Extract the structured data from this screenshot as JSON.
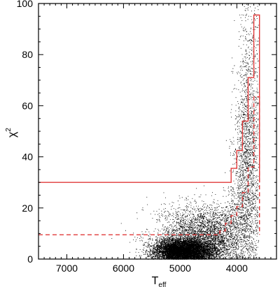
{
  "chart_data": {
    "type": "scatter",
    "title": "",
    "xlabel": {
      "base": "T",
      "sub": "eff"
    },
    "ylabel": {
      "base": "χ",
      "sup": "2"
    },
    "x_reversed": true,
    "xlim": [
      7500,
      3300
    ],
    "ylim": [
      0,
      100
    ],
    "x_ticks": [
      7000,
      6000,
      5000,
      4000
    ],
    "x_tick_labels": [
      "7000",
      "6000",
      "5000",
      "4000"
    ],
    "y_ticks": [
      0,
      20,
      40,
      60,
      80,
      100
    ],
    "y_tick_labels": [
      "0",
      "20",
      "40",
      "60",
      "80",
      "100"
    ],
    "grid": false,
    "colors": {
      "points": "#000000",
      "threshold": "#e03a3a"
    },
    "density_components": [
      {
        "teff_center": 4950,
        "teff_sd": 250,
        "chi2_center": 3.5,
        "chi2_sd": 2.2,
        "weight": 0.55
      },
      {
        "teff_center": 4500,
        "teff_sd": 450,
        "chi2_center": 9,
        "chi2_sd": 6,
        "weight": 0.3
      },
      {
        "teff_center": 3800,
        "teff_sd": 120,
        "chi2_center": 30,
        "chi2_sd": 15,
        "weight": 0.15
      }
    ],
    "series": [
      {
        "name": "",
        "style": "solid",
        "teff": [
          7500,
          4100,
          4100,
          4000,
          4000,
          3900,
          3900,
          3800,
          3800,
          3700,
          3700,
          3600,
          3600
        ],
        "chi2": [
          30,
          30,
          35.5,
          35.5,
          42.5,
          42.5,
          54,
          54,
          71,
          71,
          95.5,
          95.5,
          30
        ]
      },
      {
        "name": "",
        "style": "dashed",
        "teff": [
          7500,
          4300,
          4300,
          4200,
          4200,
          4100,
          4100,
          4000,
          4000,
          3900,
          3900,
          3800,
          3800,
          3700,
          3700,
          3600,
          3600
        ],
        "chi2": [
          9.5,
          9.5,
          11,
          11,
          14,
          14,
          17,
          17,
          20.5,
          20.5,
          26,
          26,
          36,
          36,
          63.5,
          63.5,
          9.5
        ]
      }
    ]
  }
}
